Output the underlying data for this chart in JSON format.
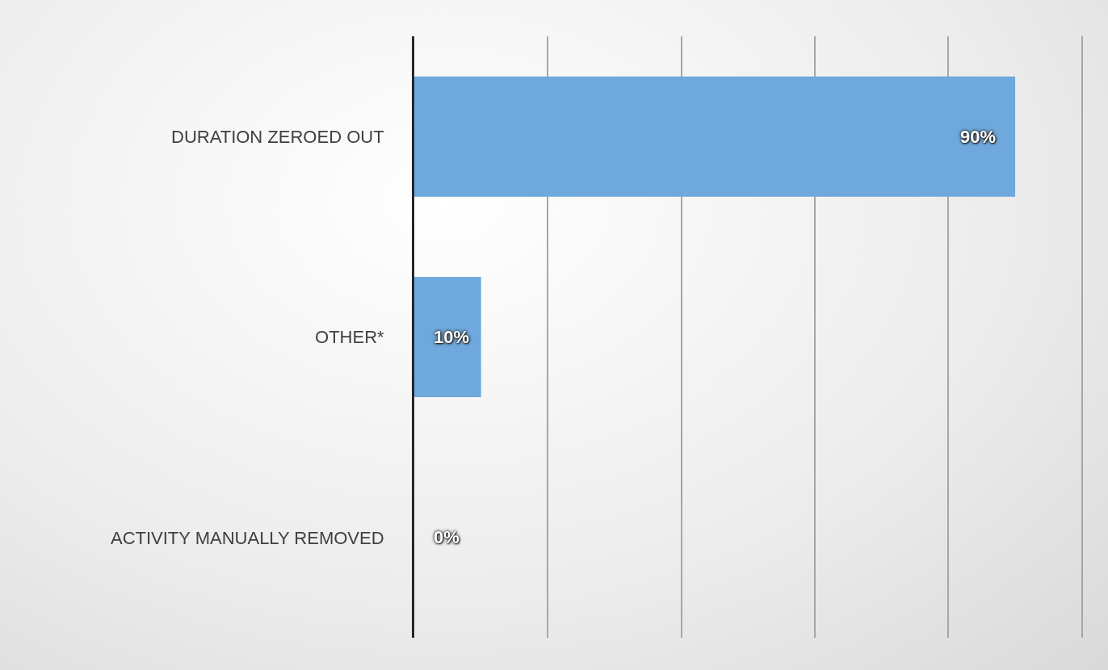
{
  "chart_data": {
    "type": "bar",
    "orientation": "horizontal",
    "categories": [
      "DURATION ZEROED OUT",
      "OTHER*",
      "ACTIVITY MANUALLY REMOVED"
    ],
    "values": [
      90,
      10,
      0
    ],
    "value_labels": [
      "90%",
      "10%",
      "0%"
    ],
    "color": "#6fa8dc",
    "xticks": [
      {
        "value": 0,
        "label": null
      },
      {
        "value": 20,
        "label": null
      },
      {
        "value": 40,
        "label": null
      },
      {
        "value": 60,
        "label": null
      },
      {
        "value": 80,
        "label": null
      },
      {
        "value": 100,
        "label": null
      }
    ],
    "grid": "x",
    "tick_labels": "y",
    "legend": false
  }
}
